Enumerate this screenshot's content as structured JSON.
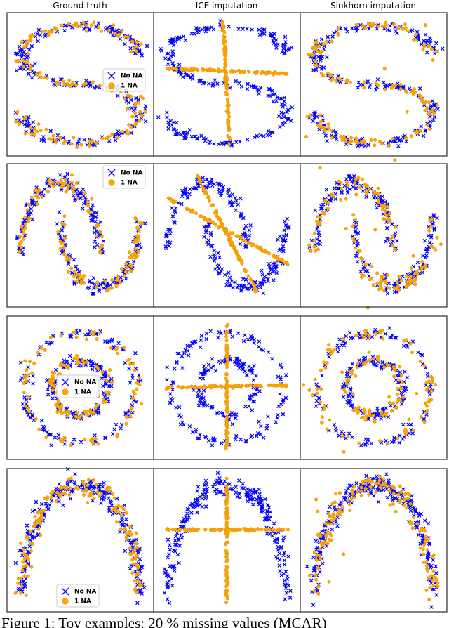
{
  "columns": [
    "Ground truth",
    "ICE imputation",
    "Sinkhorn imputation"
  ],
  "legend": [
    "No NA",
    "1 NA"
  ],
  "caption": "Figure 1:  Toy examples: 20 % missing values (MCAR)"
}
